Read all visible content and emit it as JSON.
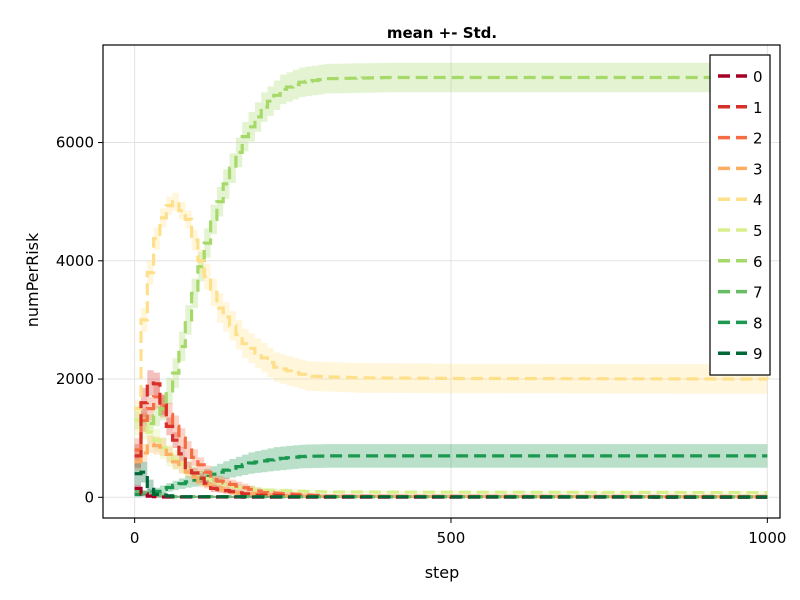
{
  "chart_data": {
    "type": "line",
    "title": "mean +- Std.",
    "xlabel": "step",
    "ylabel": "numPerRisk",
    "xlim": [
      -50,
      1020
    ],
    "ylim": [
      -350,
      7650
    ],
    "xticks": [
      0,
      500,
      1000
    ],
    "yticks": [
      0,
      2000,
      4000,
      6000
    ],
    "grid": true,
    "legend_position": "top-right",
    "line_style": "dashed-step",
    "band": "mean +- std (shaded)",
    "series": [
      {
        "name": "0",
        "color": "#a50026",
        "x": [
          0,
          10,
          20,
          40,
          1000
        ],
        "y": [
          150,
          60,
          20,
          5,
          0
        ],
        "std": [
          60,
          40,
          20,
          10,
          10
        ]
      },
      {
        "name": "1",
        "color": "#d73027",
        "x": [
          0,
          10,
          25,
          50,
          80,
          120,
          180,
          300,
          1000
        ],
        "y": [
          700,
          1600,
          2100,
          1200,
          500,
          150,
          40,
          10,
          5
        ],
        "std": [
          200,
          250,
          200,
          150,
          100,
          60,
          30,
          15,
          15
        ]
      },
      {
        "name": "2",
        "color": "#f46d43",
        "x": [
          0,
          10,
          30,
          50,
          80,
          120,
          200,
          300,
          1000
        ],
        "y": [
          800,
          1300,
          1700,
          1400,
          800,
          300,
          80,
          20,
          15
        ],
        "std": [
          200,
          200,
          200,
          200,
          150,
          100,
          50,
          25,
          25
        ]
      },
      {
        "name": "3",
        "color": "#fdae61",
        "x": [
          0,
          20,
          40,
          60,
          100,
          150,
          250,
          1000
        ],
        "y": [
          600,
          900,
          850,
          600,
          250,
          80,
          20,
          10
        ],
        "std": [
          150,
          150,
          150,
          120,
          80,
          40,
          20,
          20
        ]
      },
      {
        "name": "4",
        "color": "#fee08b",
        "x": [
          0,
          10,
          25,
          45,
          60,
          80,
          100,
          130,
          170,
          220,
          270,
          350,
          500,
          1000
        ],
        "y": [
          1500,
          3000,
          4200,
          4900,
          5000,
          4700,
          4000,
          3200,
          2600,
          2200,
          2050,
          2020,
          2010,
          2000
        ],
        "std": [
          150,
          200,
          200,
          150,
          150,
          150,
          200,
          250,
          250,
          250,
          250,
          250,
          250,
          250
        ]
      },
      {
        "name": "5",
        "color": "#d9ef8b",
        "x": [
          0,
          20,
          50,
          100,
          150,
          200,
          300,
          1000
        ],
        "y": [
          1300,
          1100,
          700,
          350,
          180,
          120,
          90,
          80
        ],
        "std": [
          250,
          200,
          180,
          120,
          60,
          40,
          25,
          25
        ]
      },
      {
        "name": "6",
        "color": "#a6d96a",
        "x": [
          0,
          20,
          40,
          60,
          80,
          100,
          120,
          140,
          170,
          200,
          230,
          260,
          300,
          400,
          1000
        ],
        "y": [
          1300,
          1250,
          1500,
          2100,
          3000,
          3900,
          4700,
          5300,
          6100,
          6600,
          6900,
          7020,
          7080,
          7100,
          7100
        ],
        "std": [
          150,
          150,
          200,
          250,
          250,
          250,
          250,
          250,
          250,
          250,
          250,
          250,
          250,
          250,
          250
        ]
      },
      {
        "name": "7",
        "color": "#66bd63",
        "x": [
          0,
          20,
          40,
          60,
          1000
        ],
        "y": [
          100,
          60,
          30,
          10,
          5
        ],
        "std": [
          40,
          30,
          20,
          10,
          10
        ]
      },
      {
        "name": "8",
        "color": "#1a9850",
        "x": [
          0,
          30,
          60,
          100,
          140,
          180,
          220,
          260,
          300,
          400,
          1000
        ],
        "y": [
          50,
          100,
          200,
          320,
          460,
          580,
          650,
          690,
          700,
          700,
          700
        ],
        "std": [
          50,
          60,
          80,
          120,
          150,
          180,
          200,
          200,
          200,
          200,
          200
        ]
      },
      {
        "name": "9",
        "color": "#006837",
        "x": [
          0,
          5,
          15,
          30,
          60,
          1000
        ],
        "y": [
          400,
          600,
          250,
          50,
          10,
          5
        ],
        "std": [
          200,
          200,
          150,
          50,
          20,
          20
        ]
      }
    ]
  }
}
